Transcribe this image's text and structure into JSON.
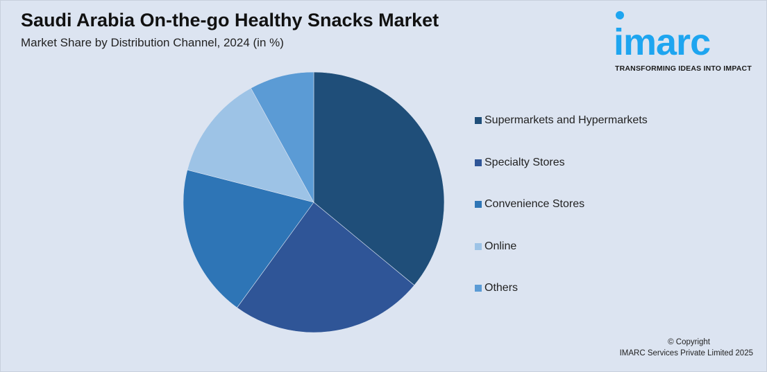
{
  "chart_data": {
    "type": "pie",
    "title": "Saudi Arabia On-the-go Healthy Snacks Market",
    "subtitle": "Market Share by Distribution Channel, 2024 (in %)",
    "categories": [
      "Supermarkets and Hypermarkets",
      "Specialty Stores",
      "Convenience Stores",
      "Online",
      "Others"
    ],
    "values": [
      36,
      24,
      19,
      13,
      8
    ],
    "colors": [
      "#1f4e79",
      "#2f5597",
      "#2e75b6",
      "#9dc3e6",
      "#5b9bd5"
    ],
    "start_angle": "12 o'clock",
    "direction": "clockwise",
    "legend_position": "right"
  },
  "logo": {
    "word": "imarc",
    "tagline": "TRANSFORMING IDEAS INTO IMPACT",
    "color": "#1ea5f0"
  },
  "footer": {
    "copyright": "© Copyright",
    "company": "IMARC Services Private Limited 2025"
  }
}
